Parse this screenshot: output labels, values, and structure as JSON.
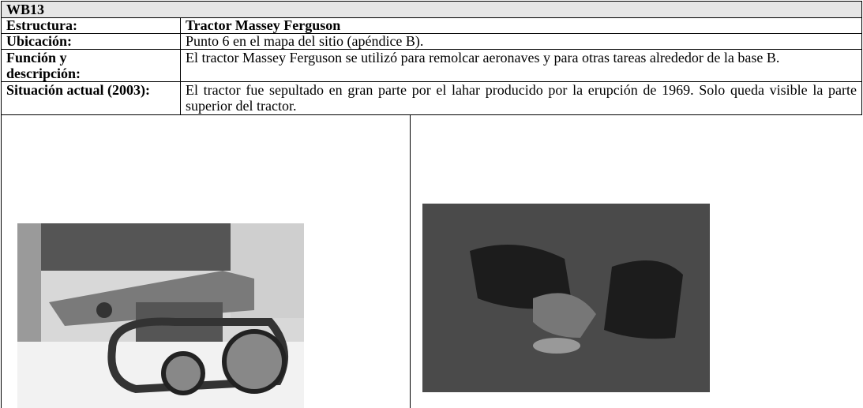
{
  "header": {
    "title": "WB13"
  },
  "table": {
    "rows": [
      {
        "label": "Estructura:",
        "value": "Tractor Massey Ferguson"
      },
      {
        "label": "Ubicación:",
        "value": "Punto 6 en el mapa del sitio (apéndice B)."
      },
      {
        "label": "Función y descripción:",
        "value": "El tractor Massey Ferguson se utilizó para remolcar aeronaves y para otras tareas alrededor de la base B."
      },
      {
        "label": "Situación actual (2003):",
        "value": "El tractor fue sepultado en gran parte por el lahar producido por la erupción de 1969. Solo queda visible la parte superior del tractor."
      }
    ]
  }
}
